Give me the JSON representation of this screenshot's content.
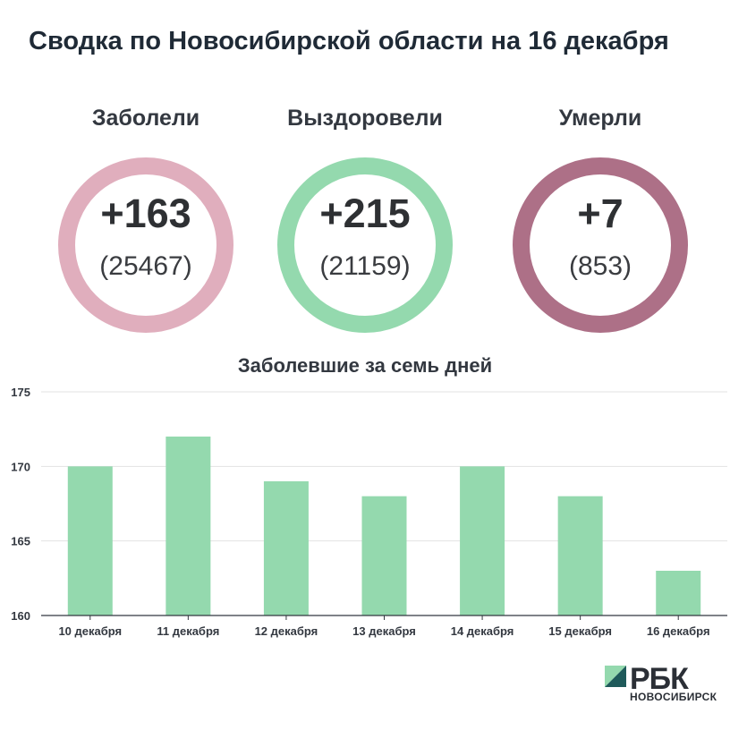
{
  "title": "Сводка по Новосибирской области на 16 декабря",
  "stats": [
    {
      "label": "Заболели",
      "delta": "+163",
      "total": "(25467)",
      "color": "#e0aebd"
    },
    {
      "label": "Выздоровели",
      "delta": "+215",
      "total": "(21159)",
      "color": "#94d9ae"
    },
    {
      "label": "Умерли",
      "delta": "+7",
      "total": "(853)",
      "color": "#ad7087"
    }
  ],
  "chart_data": {
    "type": "bar",
    "title": "Заболевшие за семь дней",
    "categories": [
      "10 декабря",
      "11 декабря",
      "12 декабря",
      "13 декабря",
      "14 декабря",
      "15 декабря",
      "16 декабря"
    ],
    "values": [
      170,
      172,
      169,
      168,
      170,
      168,
      163
    ],
    "ylim": [
      160,
      175
    ],
    "yticks": [
      "160",
      "165",
      "170",
      "175"
    ],
    "grid": true,
    "bar_color": "#94d9ae"
  },
  "logo": {
    "name": "РБК",
    "subtitle": "НОВОСИБИРСК",
    "color_dark": "#1f5a5a",
    "color_light": "#94d9ae"
  }
}
